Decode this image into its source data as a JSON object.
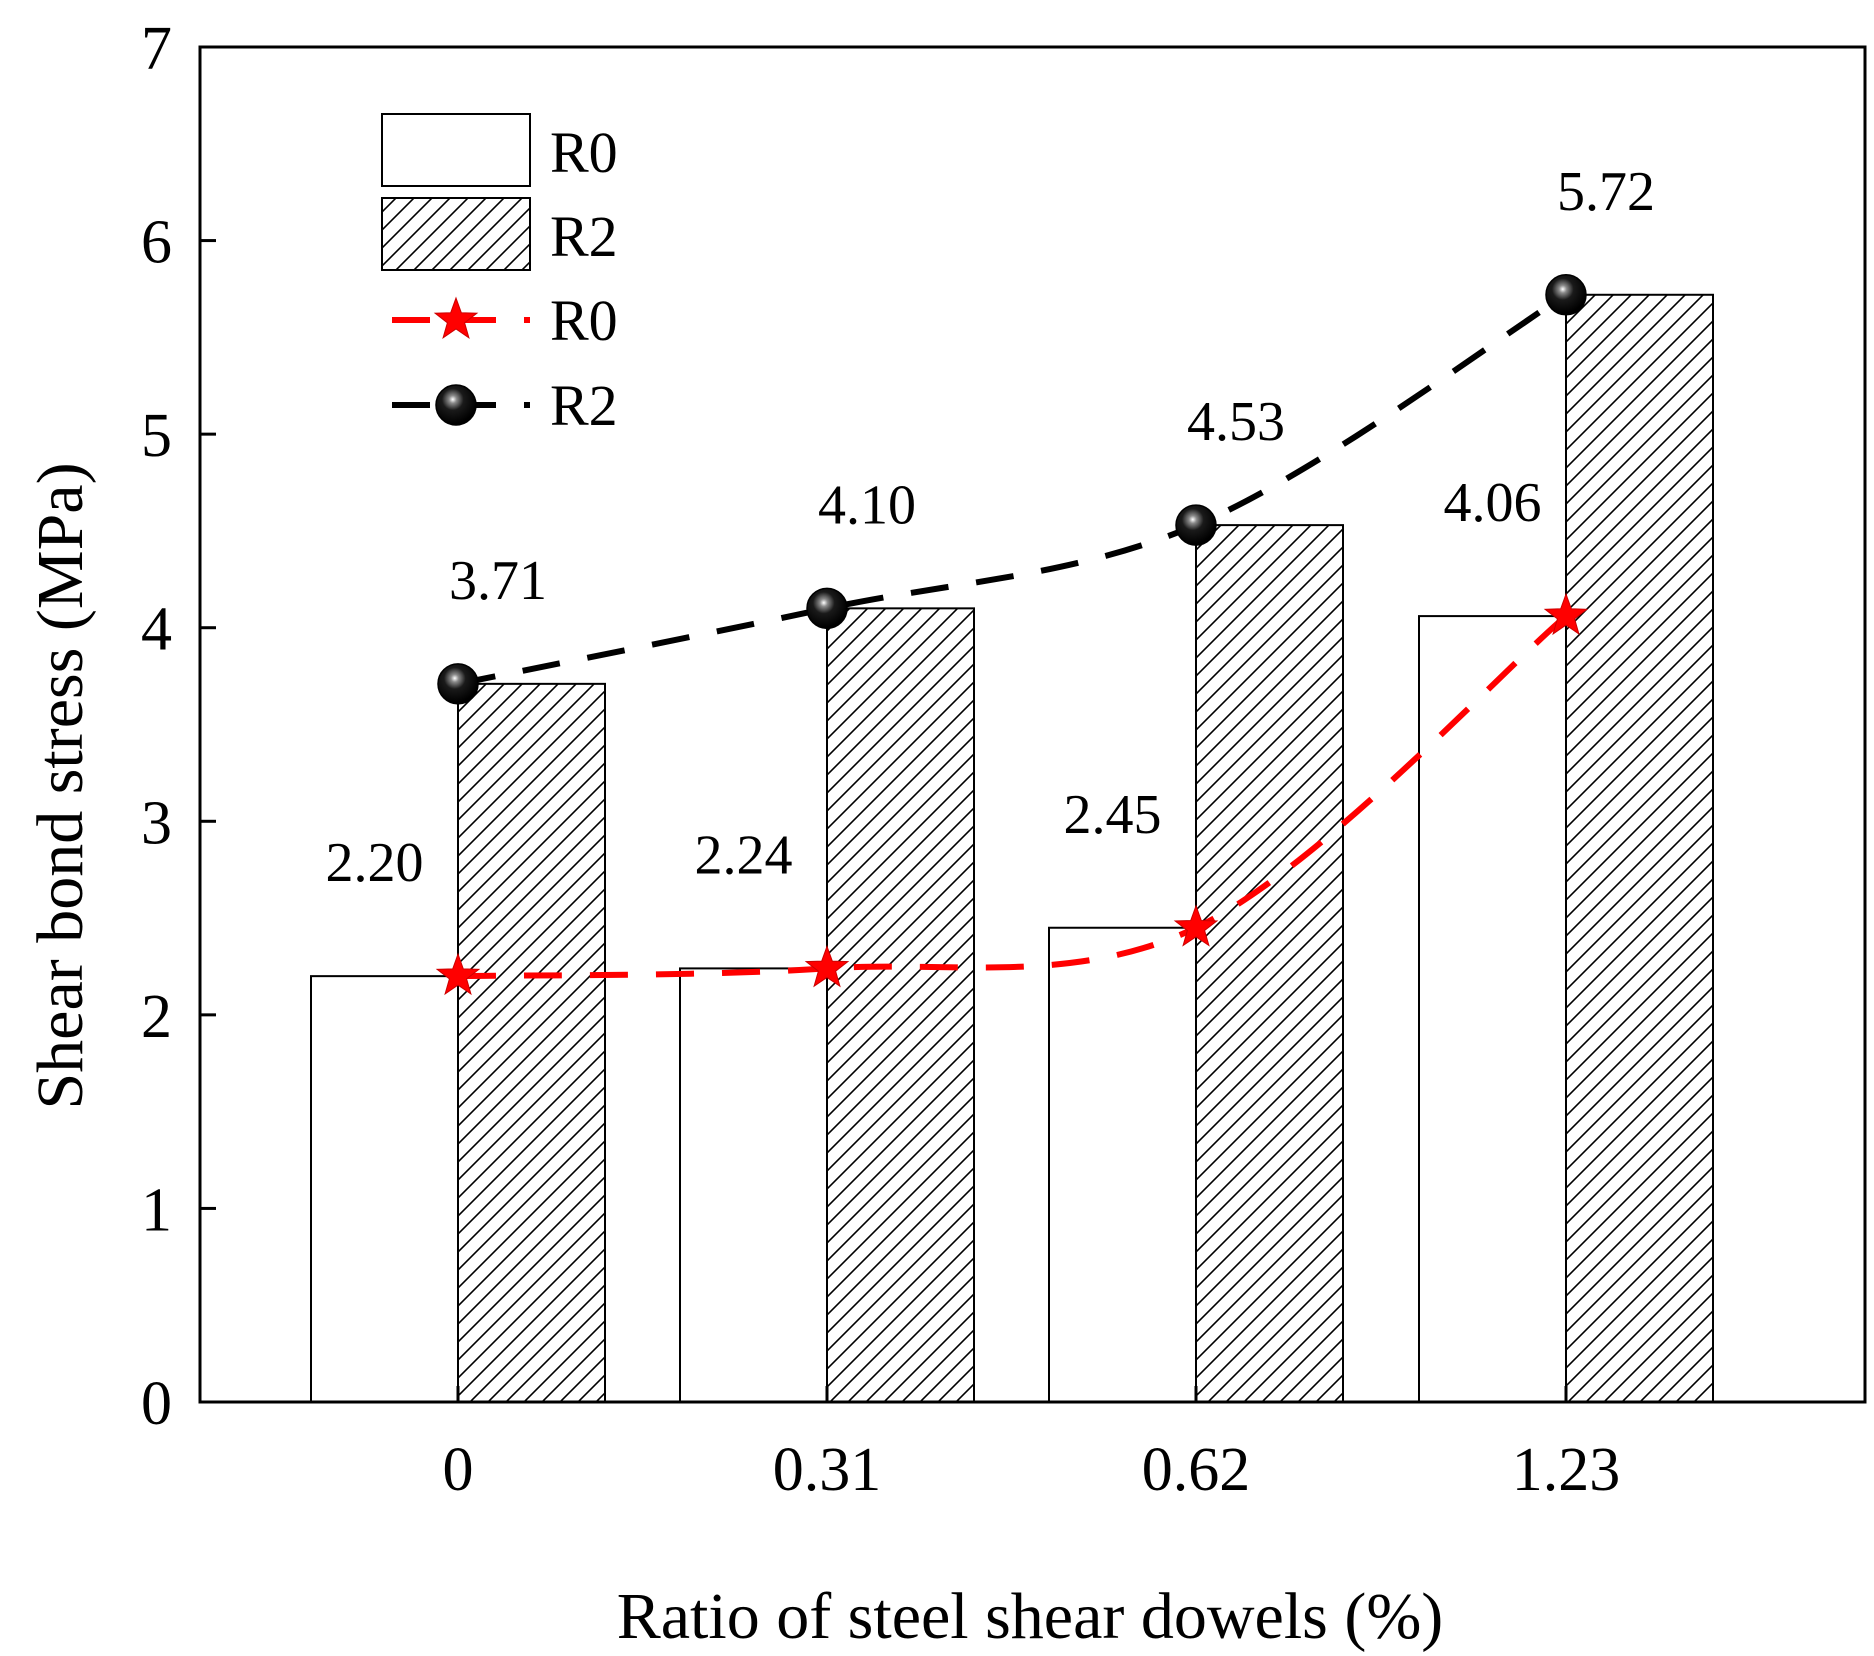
{
  "chart_data": {
    "type": "bar",
    "xlabel": "Ratio of steel shear dowels (%)",
    "ylabel": "Shear bond stress (MPa)",
    "categories": [
      "0",
      "0.31",
      "0.62",
      "1.23"
    ],
    "ylim": [
      0,
      7
    ],
    "yticks": [
      "0",
      "1",
      "2",
      "3",
      "4",
      "5",
      "6",
      "7"
    ],
    "series": [
      {
        "name": "R0",
        "kind": "bar",
        "pattern": "none",
        "values": [
          2.2,
          2.24,
          2.45,
          4.06
        ]
      },
      {
        "name": "R2",
        "kind": "bar",
        "pattern": "hatch",
        "values": [
          3.71,
          4.1,
          4.53,
          5.72
        ]
      },
      {
        "name": "R0",
        "kind": "line",
        "marker": "star",
        "color": "#ff0000",
        "style": "dashed",
        "values": [
          2.2,
          2.24,
          2.45,
          4.06
        ]
      },
      {
        "name": "R2",
        "kind": "line",
        "marker": "sphere",
        "color": "#000000",
        "style": "dashed",
        "values": [
          3.71,
          4.1,
          4.53,
          5.72
        ]
      }
    ],
    "data_labels": {
      "R0": [
        "2.20",
        "2.24",
        "2.45",
        "4.06"
      ],
      "R2": [
        "3.71",
        "4.10",
        "4.53",
        "5.72"
      ]
    },
    "legend": [
      "R0",
      "R2",
      "R0",
      "R2"
    ],
    "legend_position": "top-left",
    "grid": false
  }
}
